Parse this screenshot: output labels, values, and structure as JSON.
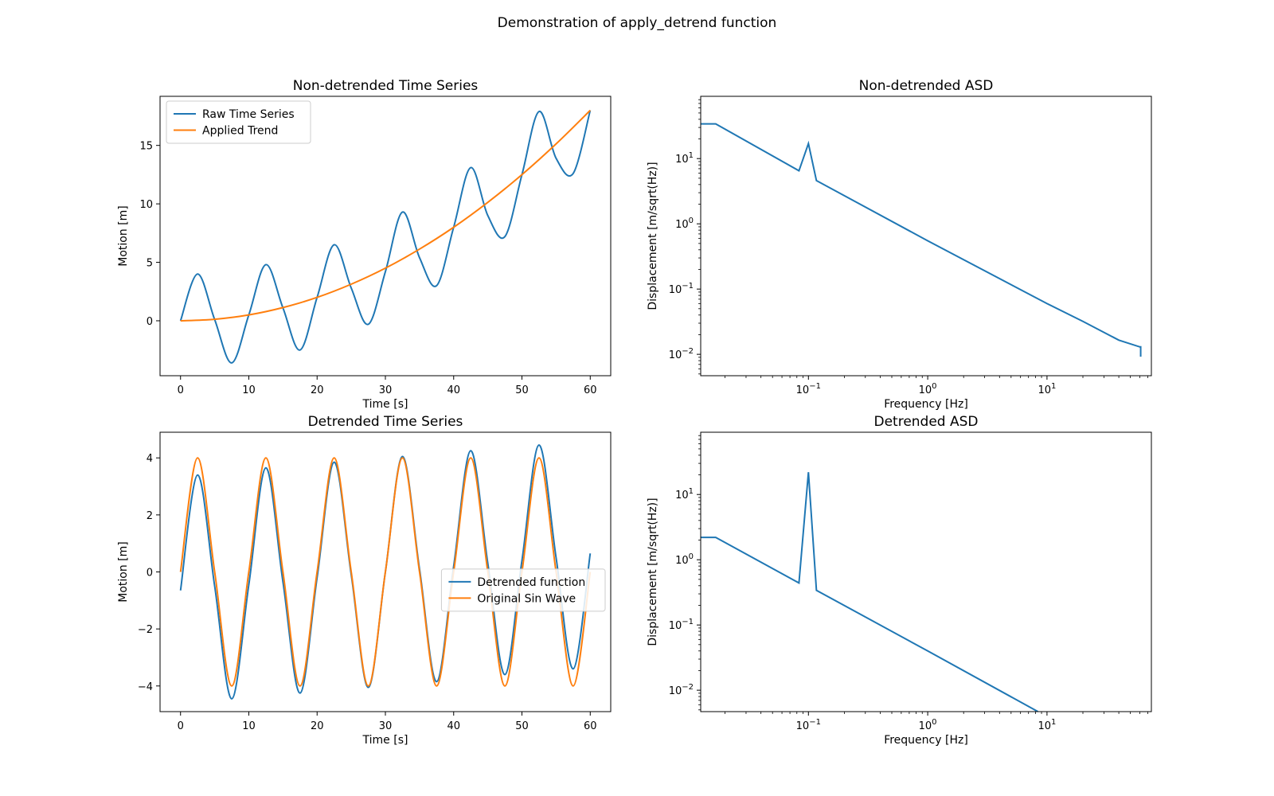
{
  "figure": {
    "title": "Demonstration of apply_detrend function"
  },
  "chart_data": [
    {
      "id": "ts-raw",
      "type": "line",
      "title": "Non-detrended Time Series",
      "xlabel": "Time [s]",
      "ylabel": "Motion [m]",
      "xlim": [
        -3,
        63
      ],
      "ylim": [
        -4.7,
        19.2
      ],
      "xscale": "linear",
      "yscale": "linear",
      "xticks": [
        0,
        10,
        20,
        30,
        40,
        50,
        60
      ],
      "xtick_labels": [
        "0",
        "10",
        "20",
        "30",
        "40",
        "50",
        "60"
      ],
      "yticks": [
        0,
        5,
        10,
        15
      ],
      "ytick_labels": [
        "0",
        "5",
        "10",
        "15"
      ],
      "grid": false,
      "legend_position": "upper-left",
      "series": [
        {
          "name": "Raw Time Series",
          "color": "#1f77b4",
          "x": [
            0,
            2.5,
            5,
            7.5,
            10,
            12.5,
            15,
            17.5,
            20,
            22.5,
            25,
            27.5,
            30,
            32.5,
            35,
            37.5,
            40,
            42.5,
            45,
            47.5,
            50,
            52.5,
            55,
            57.5,
            60
          ],
          "y": [
            0,
            4.0,
            0.1,
            -3.6,
            0.5,
            4.8,
            1.1,
            -2.5,
            2.0,
            6.5,
            2.8,
            -0.3,
            4.2,
            9.3,
            5.4,
            3.0,
            8.0,
            13.1,
            9.0,
            7.2,
            12.5,
            17.9,
            13.9,
            12.6,
            18.0
          ]
        },
        {
          "name": "Applied Trend",
          "color": "#ff7f0e",
          "x": [
            0,
            5,
            10,
            15,
            20,
            25,
            30,
            35,
            40,
            45,
            50,
            55,
            60
          ],
          "y": [
            0,
            0.13,
            0.5,
            1.13,
            2.0,
            3.13,
            4.5,
            6.13,
            8.0,
            10.13,
            12.5,
            15.13,
            18.0
          ]
        }
      ]
    },
    {
      "id": "asd-raw",
      "type": "line",
      "title": "Non-detrended ASD",
      "xlabel": "Frequency [Hz]",
      "ylabel": "Displacement [m/sqrt(Hz)]",
      "xlim": [
        0.0125,
        75
      ],
      "ylim": [
        0.0047,
        90
      ],
      "xscale": "log",
      "yscale": "log",
      "xticks": [
        0.1,
        1,
        10
      ],
      "xtick_labels": [
        {
          "base": "10",
          "exp": "−1"
        },
        {
          "base": "10",
          "exp": "0"
        },
        {
          "base": "10",
          "exp": "1"
        }
      ],
      "yticks": [
        0.01,
        0.1,
        1,
        10
      ],
      "ytick_labels": [
        {
          "base": "10",
          "exp": "−2"
        },
        {
          "base": "10",
          "exp": "−1"
        },
        {
          "base": "10",
          "exp": "0"
        },
        {
          "base": "10",
          "exp": "1"
        }
      ],
      "grid": false,
      "legend_position": "none",
      "series": [
        {
          "name": "",
          "color": "#1f77b4",
          "x": [
            0.0125,
            0.0167,
            0.0833,
            0.1,
            0.1167,
            1.0,
            10.0,
            20.0,
            40.0,
            60.0,
            61.0,
            61.0
          ],
          "y": [
            34,
            34,
            6.5,
            17,
            4.6,
            0.55,
            0.06,
            0.032,
            0.0165,
            0.013,
            0.013,
            0.0092
          ]
        }
      ]
    },
    {
      "id": "ts-detrended",
      "type": "line",
      "title": "Detrended Time Series",
      "xlabel": "Time [s]",
      "ylabel": "Motion [m]",
      "xlim": [
        -3,
        63
      ],
      "ylim": [
        -4.9,
        4.9
      ],
      "xscale": "linear",
      "yscale": "linear",
      "xticks": [
        0,
        10,
        20,
        30,
        40,
        50,
        60
      ],
      "xtick_labels": [
        "0",
        "10",
        "20",
        "30",
        "40",
        "50",
        "60"
      ],
      "yticks": [
        -4,
        -2,
        0,
        2,
        4
      ],
      "ytick_labels": [
        "−4",
        "−2",
        "0",
        "2",
        "4"
      ],
      "grid": false,
      "legend_position": "center-right",
      "series": [
        {
          "name": "Detrended function",
          "color": "#1f77b4",
          "x": [
            0,
            2.5,
            5,
            7.5,
            10,
            12.5,
            15,
            17.5,
            20,
            22.5,
            25,
            27.5,
            30,
            32.5,
            35,
            37.5,
            40,
            42.5,
            45,
            47.5,
            50,
            52.5,
            55,
            57.5,
            60
          ],
          "y": [
            -0.65,
            3.4,
            -0.5,
            -4.45,
            -0.45,
            3.65,
            -0.35,
            -4.25,
            -0.2,
            3.85,
            -0.1,
            -4.05,
            0.0,
            4.05,
            0.1,
            -3.85,
            0.2,
            4.25,
            0.3,
            -3.6,
            0.4,
            4.45,
            0.5,
            -3.4,
            0.65
          ]
        },
        {
          "name": "Original Sin Wave",
          "color": "#ff7f0e",
          "x": [
            0,
            2.5,
            5,
            7.5,
            10,
            12.5,
            15,
            17.5,
            20,
            22.5,
            25,
            27.5,
            30,
            32.5,
            35,
            37.5,
            40,
            42.5,
            45,
            47.5,
            50,
            52.5,
            55,
            57.5,
            60
          ],
          "y": [
            0,
            4,
            0,
            -4,
            0,
            4,
            0,
            -4,
            0,
            4,
            0,
            -4,
            0,
            4,
            0,
            -4,
            0,
            4,
            0,
            -4,
            0,
            4,
            0,
            -4,
            0
          ]
        }
      ]
    },
    {
      "id": "asd-detrended",
      "type": "line",
      "title": "Detrended ASD",
      "xlabel": "Frequency [Hz]",
      "ylabel": "Displacement [m/sqrt(Hz)]",
      "xlim": [
        0.0125,
        75
      ],
      "ylim": [
        0.0047,
        90
      ],
      "xscale": "log",
      "yscale": "log",
      "xticks": [
        0.1,
        1,
        10
      ],
      "xtick_labels": [
        {
          "base": "10",
          "exp": "−1"
        },
        {
          "base": "10",
          "exp": "0"
        },
        {
          "base": "10",
          "exp": "1"
        }
      ],
      "yticks": [
        0.01,
        0.1,
        1,
        10
      ],
      "ytick_labels": [
        {
          "base": "10",
          "exp": "−2"
        },
        {
          "base": "10",
          "exp": "−1"
        },
        {
          "base": "10",
          "exp": "0"
        },
        {
          "base": "10",
          "exp": "1"
        }
      ],
      "grid": false,
      "legend_position": "none",
      "series": [
        {
          "name": "",
          "color": "#1f77b4",
          "x": [
            0.0125,
            0.0167,
            0.0833,
            0.1,
            0.1167,
            1.0,
            8.4
          ],
          "y": [
            2.2,
            2.2,
            0.44,
            22,
            0.34,
            0.04,
            0.0047
          ]
        }
      ]
    }
  ]
}
